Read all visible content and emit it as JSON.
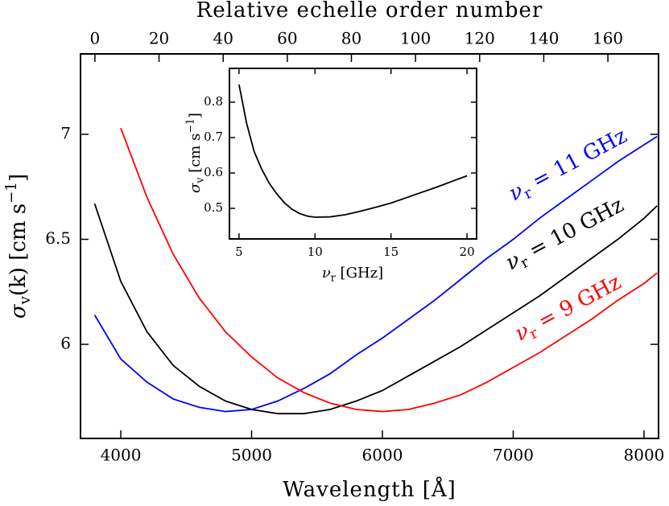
{
  "chart_data": [
    {
      "type": "line",
      "xlabel": "Wavelength [Å]",
      "ylabel": {
        "main": "σ",
        "sub": "v",
        "rest": "(k) [cm s",
        "sup": "−1",
        "end": "]"
      },
      "x2label": "Relative echelle order number",
      "x": [
        3800,
        4000,
        4200,
        4400,
        4600,
        4800,
        5000,
        5200,
        5400,
        5600,
        5800,
        6000,
        6200,
        6400,
        6600,
        6800,
        7000,
        7200,
        7400,
        7600,
        7800,
        8000,
        8100
      ],
      "series": [
        {
          "label": {
            "symbol": "ν",
            "sub": "r",
            "text": " = 11 GHz"
          },
          "color": "#0000ff",
          "values": [
            6.14,
            5.93,
            5.82,
            5.74,
            5.7,
            5.68,
            5.69,
            5.73,
            5.79,
            5.86,
            5.95,
            6.03,
            6.12,
            6.21,
            6.31,
            6.41,
            6.5,
            6.6,
            6.69,
            6.78,
            6.87,
            6.95,
            6.99
          ]
        },
        {
          "label": {
            "symbol": "ν",
            "sub": "r",
            "text": " = 10 GHz"
          },
          "color": "#000000",
          "values": [
            6.67,
            6.3,
            6.06,
            5.9,
            5.8,
            5.73,
            5.69,
            5.67,
            5.67,
            5.69,
            5.73,
            5.78,
            5.85,
            5.92,
            5.99,
            6.07,
            6.15,
            6.23,
            6.32,
            6.41,
            6.5,
            6.6,
            6.66
          ]
        },
        {
          "label": {
            "symbol": "ν",
            "sub": "r",
            "text": " = 9 GHz"
          },
          "color": "#ff0000",
          "values": [
            null,
            7.03,
            6.7,
            6.43,
            6.22,
            6.06,
            5.94,
            5.84,
            5.77,
            5.72,
            5.69,
            5.68,
            5.69,
            5.72,
            5.76,
            5.82,
            5.89,
            5.96,
            6.04,
            6.12,
            6.21,
            6.29,
            6.34
          ]
        }
      ],
      "xlim": [
        3692,
        8111
      ],
      "xticks": [
        4000,
        5000,
        6000,
        7000,
        8000
      ],
      "ylim": [
        5.552,
        7.383
      ],
      "yticks": [
        6,
        6.5,
        7
      ],
      "x2lim": [
        -4.5,
        175.8
      ],
      "x2ticks": [
        0,
        20,
        40,
        60,
        80,
        100,
        120,
        140,
        160
      ]
    },
    {
      "type": "line",
      "xlabel": {
        "symbol": "ν",
        "sub": "r",
        "text": " [GHz]"
      },
      "ylabel": {
        "main": "σ",
        "sub": "v",
        "rest": " [cm s",
        "sup": "−1",
        "end": "]"
      },
      "x": [
        5,
        5.5,
        6,
        6.5,
        7,
        7.5,
        8,
        8.5,
        9,
        9.5,
        10,
        11,
        12,
        13,
        14,
        15,
        16,
        17,
        18,
        19,
        20
      ],
      "series": [
        {
          "color": "#000000",
          "values": [
            0.85,
            0.74,
            0.66,
            0.61,
            0.57,
            0.54,
            0.515,
            0.497,
            0.485,
            0.478,
            0.475,
            0.476,
            0.482,
            0.492,
            0.503,
            0.515,
            0.53,
            0.545,
            0.56,
            0.576,
            0.592
          ]
        }
      ],
      "xlim": [
        4.37,
        20.63
      ],
      "xticks": [
        5,
        10,
        15,
        20
      ],
      "ylim": [
        0.4136,
        0.8955
      ],
      "yticks": [
        0.5,
        0.6,
        0.7,
        0.8
      ]
    }
  ]
}
